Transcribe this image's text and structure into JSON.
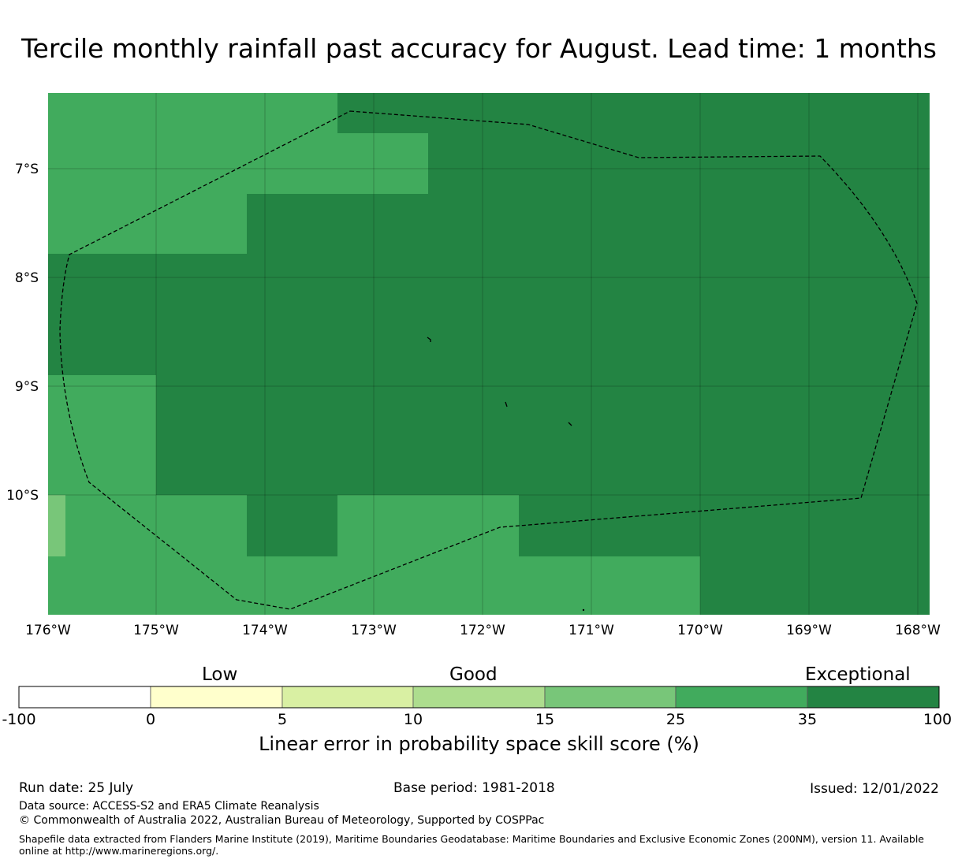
{
  "title": "Tercile monthly rainfall past accuracy for August. Lead time: 1 months",
  "map": {
    "lon_ticks": [
      "176°W",
      "175°W",
      "174°W",
      "173°W",
      "172°W",
      "171°W",
      "170°W",
      "169°W",
      "168°W"
    ],
    "lat_ticks": [
      "7°S",
      "8°S",
      "9°S",
      "10°S"
    ],
    "skill_grid_colors": {
      "class_25_35": "#41ab5d",
      "class_35_100": "#238443",
      "class_15_25": "#78c679"
    },
    "boundary_style": "dashed black line (EEZ)"
  },
  "legend": {
    "categories": [
      "Low",
      "Good",
      "Exceptional"
    ],
    "ticks": [
      "-100",
      "0",
      "5",
      "10",
      "15",
      "25",
      "35",
      "100"
    ],
    "colors": [
      "#ffffff",
      "#ffffcc",
      "#d9f0a3",
      "#addd8e",
      "#78c679",
      "#41ab5d",
      "#238443"
    ],
    "axis_title": "Linear error in probability space skill score (%)"
  },
  "footer": {
    "run_date": "Run date: 25 July",
    "base_period": "Base period: 1981-2018",
    "issued": "Issued: 12/01/2022",
    "data_source": "Data source: ACCESS-S2 and ERA5 Climate Reanalysis",
    "copyright": "© Commonwealth of Australia 2022, Australian Bureau of Meteorology, Supported by COSPPac",
    "shapefile": "Shapefile data extracted from Flanders Marine Institute (2019), Maritime Boundaries Geodatabase: Maritime Boundaries and Exclusive Economic Zones (200NM), version 11. Available online at http://www.marineregions.org/."
  }
}
